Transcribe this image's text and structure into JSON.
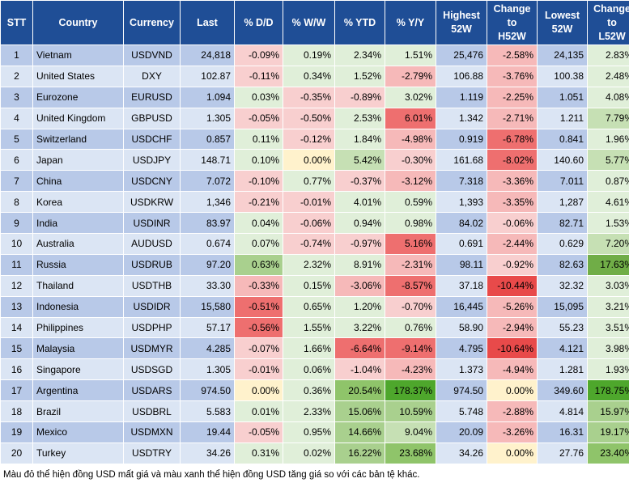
{
  "headers": [
    "STT",
    "Country",
    "Currency",
    "Last",
    "% D/D",
    "% W/W",
    "% YTD",
    "% Y/Y",
    "Highest 52W",
    "Change to H52W",
    "Lowest 52W",
    "Change to L52W"
  ],
  "header_lines": [
    [
      "STT"
    ],
    [
      "Country"
    ],
    [
      "Currency"
    ],
    [
      "Last"
    ],
    [
      "% D/D"
    ],
    [
      "% W/W"
    ],
    [
      "% YTD"
    ],
    [
      "% Y/Y"
    ],
    [
      "Highest",
      "52W"
    ],
    [
      "Change",
      "to",
      "H52W"
    ],
    [
      "Lowest",
      "52W"
    ],
    [
      "Change",
      "to",
      "L52W"
    ]
  ],
  "rows": [
    [
      "1",
      "Vietnam",
      "USDVND",
      "24,818",
      "-0.09%",
      "0.19%",
      "2.34%",
      "1.51%",
      "25,476",
      "-2.58%",
      "24,135",
      "2.83%"
    ],
    [
      "2",
      "United States",
      "DXY",
      "102.87",
      "-0.11%",
      "0.34%",
      "1.52%",
      "-2.79%",
      "106.88",
      "-3.76%",
      "100.38",
      "2.48%"
    ],
    [
      "3",
      "Eurozone",
      "EURUSD",
      "1.094",
      "0.03%",
      "-0.35%",
      "-0.89%",
      "3.02%",
      "1.119",
      "-2.25%",
      "1.051",
      "4.08%"
    ],
    [
      "4",
      "United Kingdom",
      "GBPUSD",
      "1.305",
      "-0.05%",
      "-0.50%",
      "2.53%",
      "6.01%",
      "1.342",
      "-2.71%",
      "1.211",
      "7.79%"
    ],
    [
      "5",
      "Switzerland",
      "USDCHF",
      "0.857",
      "0.11%",
      "-0.12%",
      "1.84%",
      "-4.98%",
      "0.919",
      "-6.78%",
      "0.841",
      "1.96%"
    ],
    [
      "6",
      "Japan",
      "USDJPY",
      "148.71",
      "0.10%",
      "0.00%",
      "5.42%",
      "-0.30%",
      "161.68",
      "-8.02%",
      "140.60",
      "5.77%"
    ],
    [
      "7",
      "China",
      "USDCNY",
      "7.072",
      "-0.10%",
      "0.77%",
      "-0.37%",
      "-3.12%",
      "7.318",
      "-3.36%",
      "7.011",
      "0.87%"
    ],
    [
      "8",
      "Korea",
      "USDKRW",
      "1,346",
      "-0.21%",
      "-0.01%",
      "4.01%",
      "0.59%",
      "1,393",
      "-3.35%",
      "1,287",
      "4.61%"
    ],
    [
      "9",
      "India",
      "USDINR",
      "83.97",
      "0.04%",
      "-0.06%",
      "0.94%",
      "0.98%",
      "84.02",
      "-0.06%",
      "82.71",
      "1.53%"
    ],
    [
      "10",
      "Australia",
      "AUDUSD",
      "0.674",
      "0.07%",
      "-0.74%",
      "-0.97%",
      "5.16%",
      "0.691",
      "-2.44%",
      "0.629",
      "7.20%"
    ],
    [
      "11",
      "Russia",
      "USDRUB",
      "97.20",
      "0.63%",
      "2.32%",
      "8.91%",
      "-2.31%",
      "98.11",
      "-0.92%",
      "82.63",
      "17.63%"
    ],
    [
      "12",
      "Thailand",
      "USDTHB",
      "33.30",
      "-0.33%",
      "0.15%",
      "-3.06%",
      "-8.57%",
      "37.18",
      "-10.44%",
      "32.32",
      "3.03%"
    ],
    [
      "13",
      "Indonesia",
      "USDIDR",
      "15,580",
      "-0.51%",
      "0.65%",
      "1.20%",
      "-0.70%",
      "16,445",
      "-5.26%",
      "15,095",
      "3.21%"
    ],
    [
      "14",
      "Philippines",
      "USDPHP",
      "57.17",
      "-0.56%",
      "1.55%",
      "3.22%",
      "0.76%",
      "58.90",
      "-2.94%",
      "55.23",
      "3.51%"
    ],
    [
      "15",
      "Malaysia",
      "USDMYR",
      "4.285",
      "-0.07%",
      "1.66%",
      "-6.64%",
      "-9.14%",
      "4.795",
      "-10.64%",
      "4.121",
      "3.98%"
    ],
    [
      "16",
      "Singapore",
      "USDSGD",
      "1.305",
      "-0.01%",
      "0.06%",
      "-1.04%",
      "-4.23%",
      "1.373",
      "-4.94%",
      "1.281",
      "1.93%"
    ],
    [
      "17",
      "Argentina",
      "USDARS",
      "974.50",
      "0.00%",
      "0.36%",
      "20.54%",
      "178.37%",
      "974.50",
      "0.00%",
      "349.60",
      "178.75%"
    ],
    [
      "18",
      "Brazil",
      "USDBRL",
      "5.583",
      "0.01%",
      "2.33%",
      "15.06%",
      "10.59%",
      "5.748",
      "-2.88%",
      "4.814",
      "15.97%"
    ],
    [
      "19",
      "Mexico",
      "USDMXN",
      "19.44",
      "-0.05%",
      "0.95%",
      "14.66%",
      "9.04%",
      "20.09",
      "-3.26%",
      "16.31",
      "19.17%"
    ],
    [
      "20",
      "Turkey",
      "USDTRY",
      "34.26",
      "0.31%",
      "0.02%",
      "16.22%",
      "23.68%",
      "34.26",
      "0.00%",
      "27.76",
      "23.40%"
    ]
  ],
  "cell_colors": [
    [
      "",
      "",
      "",
      "",
      "#f8cfcf",
      "#e0efd9",
      "#e0efd9",
      "#e0efd9",
      "",
      "#f6b9b9",
      "",
      "#e0efd9"
    ],
    [
      "",
      "",
      "",
      "",
      "#f8cfcf",
      "#e0efd9",
      "#e0efd9",
      "#f6b9b9",
      "",
      "#f6b9b9",
      "",
      "#e0efd9"
    ],
    [
      "",
      "",
      "",
      "",
      "#e0efd9",
      "#f8cfcf",
      "#f8cfcf",
      "#e0efd9",
      "",
      "#f6b9b9",
      "",
      "#e0efd9"
    ],
    [
      "",
      "",
      "",
      "",
      "#f8cfcf",
      "#f8cfcf",
      "#e0efd9",
      "#ee6f6f",
      "",
      "#f6b9b9",
      "",
      "#c6e0b4"
    ],
    [
      "",
      "",
      "",
      "",
      "#e0efd9",
      "#f8cfcf",
      "#e0efd9",
      "#f6b9b9",
      "",
      "#ee6f6f",
      "",
      "#e0efd9"
    ],
    [
      "",
      "",
      "",
      "",
      "#e0efd9",
      "#fff2cc",
      "#c6e0b4",
      "#f8cfcf",
      "",
      "#ee6f6f",
      "",
      "#c6e0b4"
    ],
    [
      "",
      "",
      "",
      "",
      "#f8cfcf",
      "#e0efd9",
      "#f8cfcf",
      "#f6b9b9",
      "",
      "#f6b9b9",
      "",
      "#e0efd9"
    ],
    [
      "",
      "",
      "",
      "",
      "#f8cfcf",
      "#f8cfcf",
      "#e0efd9",
      "#e0efd9",
      "",
      "#f6b9b9",
      "",
      "#e0efd9"
    ],
    [
      "",
      "",
      "",
      "",
      "#e0efd9",
      "#f8cfcf",
      "#e0efd9",
      "#e0efd9",
      "",
      "#f8cfcf",
      "",
      "#e0efd9"
    ],
    [
      "",
      "",
      "",
      "",
      "#e0efd9",
      "#f8cfcf",
      "#f8cfcf",
      "#ee6f6f",
      "",
      "#f6b9b9",
      "",
      "#c6e0b4"
    ],
    [
      "",
      "",
      "",
      "",
      "#a9d08e",
      "#e0efd9",
      "#e0efd9",
      "#f6b9b9",
      "",
      "#f8cfcf",
      "",
      "#70ad47"
    ],
    [
      "",
      "",
      "",
      "",
      "#f6b9b9",
      "#e0efd9",
      "#f6b9b9",
      "#ee6f6f",
      "",
      "#e84a4a",
      "",
      "#e0efd9"
    ],
    [
      "",
      "",
      "",
      "",
      "#ee6f6f",
      "#e0efd9",
      "#e0efd9",
      "#f8cfcf",
      "",
      "#f6b9b9",
      "",
      "#e0efd9"
    ],
    [
      "",
      "",
      "",
      "",
      "#ee6f6f",
      "#e0efd9",
      "#e0efd9",
      "#e0efd9",
      "",
      "#f6b9b9",
      "",
      "#e0efd9"
    ],
    [
      "",
      "",
      "",
      "",
      "#f8cfcf",
      "#e0efd9",
      "#ee6f6f",
      "#ee6f6f",
      "",
      "#e84a4a",
      "",
      "#e0efd9"
    ],
    [
      "",
      "",
      "",
      "",
      "#f8cfcf",
      "#e0efd9",
      "#f8cfcf",
      "#f6b9b9",
      "",
      "#f6b9b9",
      "",
      "#e0efd9"
    ],
    [
      "",
      "",
      "",
      "",
      "#fff2cc",
      "#e0efd9",
      "#8fc46a",
      "#4ea72c",
      "",
      "#fff2cc",
      "",
      "#4ea72c"
    ],
    [
      "",
      "",
      "",
      "",
      "#e0efd9",
      "#e0efd9",
      "#a9d08e",
      "#a9d08e",
      "",
      "#f6b9b9",
      "",
      "#a9d08e"
    ],
    [
      "",
      "",
      "",
      "",
      "#f8cfcf",
      "#e0efd9",
      "#a9d08e",
      "#c6e0b4",
      "",
      "#f6b9b9",
      "",
      "#a9d08e"
    ],
    [
      "",
      "",
      "",
      "",
      "#e0efd9",
      "#e0efd9",
      "#a9d08e",
      "#8fc46a",
      "",
      "#fff2cc",
      "",
      "#8fc46a"
    ]
  ],
  "footnote": "Màu đỏ thể hiện đồng USD mất giá và màu xanh thể hiện đồng USD tăng giá so với các bản tệ khác."
}
